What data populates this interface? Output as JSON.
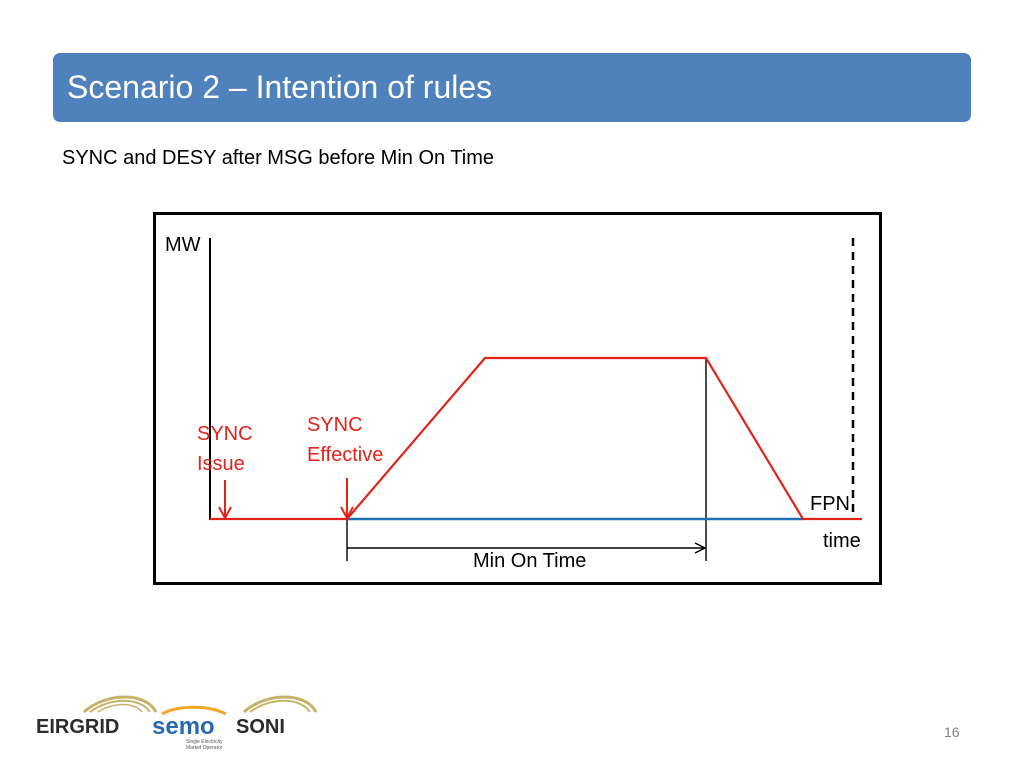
{
  "slide": {
    "title": "Scenario 2 – Intention of rules",
    "subtitle": "SYNC and DESY after MSG before Min On Time",
    "page_number": "16"
  },
  "diagram": {
    "y_axis_label": "MW",
    "x_axis_label": "time",
    "fpn_label": "FPN",
    "sync_issue_line1": "SYNC",
    "sync_issue_line2": "Issue",
    "sync_effective_line1": "SYNC",
    "sync_effective_line2": "Effective",
    "min_on_time_label": "Min On Time",
    "colors": {
      "output_line": "#e2231a",
      "fpn_line": "#1f6fb5",
      "frame": "#000000"
    }
  },
  "logos": {
    "eirgrid": "EIRGRID",
    "semo": "semo",
    "semo_tagline1": "Single Electricity",
    "semo_tagline2": "Market Operator",
    "soni": "SONI"
  }
}
